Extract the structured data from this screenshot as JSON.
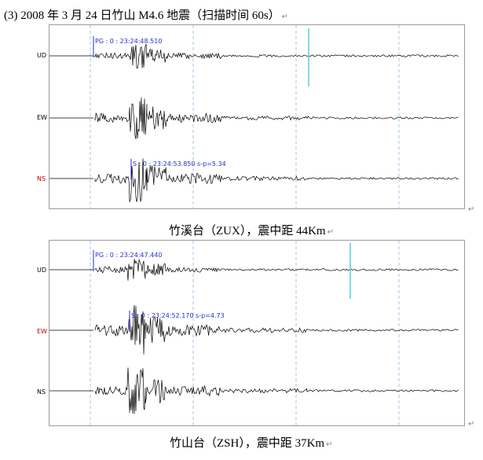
{
  "heading": "(3) 2008 年 3 月 24 日竹山 M4.6 地震（扫描时间 60s）",
  "return_mark": "↵",
  "paragraph_mark": "↵",
  "colors": {
    "trace": "#000000",
    "pick": "#2a2acc",
    "grid": "#a9c5e6",
    "highlight_channel": "#c00000",
    "spike": "#5fd0dc"
  },
  "panels": [
    {
      "caption": "竹溪台（ZUX），震中距 44Km",
      "channels": [
        {
          "label": "UD",
          "highlight": false
        },
        {
          "label": "EW",
          "highlight": false
        },
        {
          "label": "NS",
          "highlight": true
        }
      ],
      "picks": [
        {
          "text": "PG : 0 : 23:24:48.510",
          "channel": 0
        },
        {
          "text": "S    : 0 : 23:24:53.850  s-p=5.34",
          "channel": 2
        }
      ]
    },
    {
      "caption": "竹山台（ZSH），震中距 37Km",
      "channels": [
        {
          "label": "UD",
          "highlight": false
        },
        {
          "label": "EW",
          "highlight": true
        },
        {
          "label": "NS",
          "highlight": false
        }
      ],
      "picks": [
        {
          "text": "PG : 0 : 23:24:47.440",
          "channel": 0
        },
        {
          "text": "S    : 0 : 23:24:52.170  s-p=4.73",
          "channel": 1
        }
      ]
    }
  ]
}
